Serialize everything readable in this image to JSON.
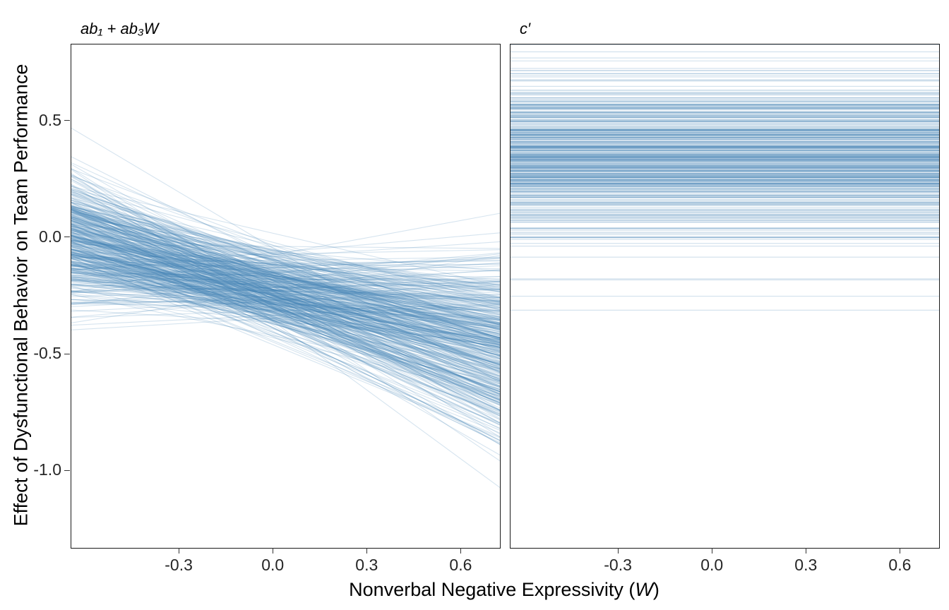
{
  "figure": {
    "y_axis_title": "Effect of Dysfunctional Behavior on Team Performance",
    "x_axis_title_prefix": "Nonverbal Negative Expressivity (",
    "x_axis_title_var": "W",
    "x_axis_title_suffix": ")"
  },
  "chart_data": [
    {
      "type": "line",
      "panel_title": "ab₁ + ab₃W",
      "description": "Spaghetti plot of ~450 posterior draws of the conditional indirect effect ab1 + ab3*W; semi-transparent blue straight lines with mostly negative slopes, fanning out toward the right (values near -0.1 at far left, centered near -0.45 at far right, extremes reaching about +0.3 and -1.1).",
      "xlabel": "Nonverbal Negative Expressivity (W)",
      "ylabel": "Effect of Dysfunctional Behavior on Team Performance",
      "xlim": [
        -0.645,
        0.723
      ],
      "ylim": [
        -1.33,
        0.83
      ],
      "xticks": [
        -0.3,
        0.0,
        0.3,
        0.6
      ],
      "xtick_labels": [
        "-0.3",
        "0.0",
        "0.3",
        "0.6"
      ],
      "yticks": [
        0.5,
        0.0,
        -0.5,
        -1.0
      ],
      "ytick_labels": [
        "0.5",
        "0.0",
        "-0.5",
        "-1.0"
      ],
      "grid": false,
      "legend": false,
      "line_color": "#4682B4",
      "line_opacity": 0.22,
      "line_width": 1.1,
      "draws": {
        "kind": "sloped-posterior-draws",
        "n": 450,
        "pivot_x": -0.1,
        "intercept_mean": -0.2,
        "intercept_sd": 0.09,
        "slope_mean": -0.33,
        "slope_sd": 0.2,
        "seed": 42
      }
    },
    {
      "type": "line",
      "panel_title": "c′",
      "description": "~400 horizontal semi-transparent blue lines (posterior draws of the direct effect c'), densest between 0.25 and 0.55, spanning roughly -0.3 to 0.8; effect does not depend on W.",
      "xlabel": "Nonverbal Negative Expressivity (W)",
      "ylabel": "Effect of Dysfunctional Behavior on Team Performance",
      "xlim": [
        -0.645,
        0.723
      ],
      "ylim": [
        -1.33,
        0.83
      ],
      "xticks": [
        -0.3,
        0.0,
        0.3,
        0.6
      ],
      "xtick_labels": [
        "-0.3",
        "0.0",
        "0.3",
        "0.6"
      ],
      "yticks": [
        0.5,
        0.0,
        -0.5,
        -1.0
      ],
      "ytick_labels": [
        "0.5",
        "0.0",
        "-0.5",
        "-1.0"
      ],
      "grid": false,
      "legend": false,
      "line_color": "#4682B4",
      "line_opacity": 0.26,
      "line_width": 1.1,
      "draws": {
        "kind": "horizontal-posterior-draws",
        "n": 400,
        "value_mean": 0.36,
        "value_sd": 0.17,
        "extra_values": [
          -0.18,
          -0.25,
          -0.31
        ],
        "seed": 7
      }
    }
  ]
}
